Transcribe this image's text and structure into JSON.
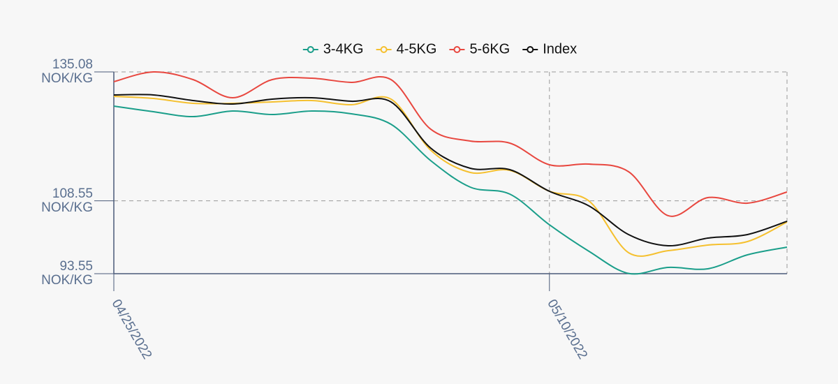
{
  "chart_data": {
    "type": "line",
    "categories": [
      "04/25/2022",
      null,
      null,
      null,
      null,
      null,
      null,
      null,
      null,
      null,
      null,
      "05/10/2022",
      null,
      null,
      null,
      null,
      null,
      null
    ],
    "series": [
      {
        "name": "3-4KG",
        "color": "#1a9e8a",
        "values": [
          128.04,
          126.89,
          125.88,
          127.03,
          126.31,
          127.03,
          126.46,
          124.3,
          116.83,
          111.37,
          109.93,
          103.61,
          98.15,
          93.6,
          94.84,
          94.56,
          97.43,
          99.01
        ]
      },
      {
        "name": "4-5KG",
        "color": "#f5c02f",
        "values": [
          130.05,
          129.62,
          128.61,
          128.61,
          128.9,
          129.19,
          128.33,
          129.48,
          118.98,
          114.39,
          114.82,
          110.51,
          108.5,
          97.86,
          98.29,
          99.44,
          100.16,
          104.18
        ]
      },
      {
        "name": "5-6KG",
        "color": "#e8473f",
        "values": [
          133.07,
          135.08,
          133.5,
          129.76,
          133.5,
          133.79,
          132.93,
          133.5,
          123.3,
          120.85,
          120.42,
          115.97,
          116.11,
          114.53,
          105.48,
          109.21,
          108.06,
          110.36
        ]
      },
      {
        "name": "Index",
        "color": "#111111",
        "values": [
          130.34,
          130.34,
          129.19,
          128.47,
          129.48,
          129.76,
          129.04,
          128.9,
          119.42,
          115.25,
          114.96,
          110.51,
          107.49,
          101.6,
          99.3,
          100.88,
          101.6,
          104.33
        ]
      }
    ],
    "ylim": [
      93.55,
      135.08
    ],
    "yticks": [
      {
        "value": 93.55,
        "label": "93.55 NOK/KG"
      },
      {
        "value": 108.55,
        "label": "108.55 NOK/KG"
      },
      {
        "value": 135.08,
        "label": "135.08 NOK/KG"
      }
    ],
    "grid": true
  }
}
